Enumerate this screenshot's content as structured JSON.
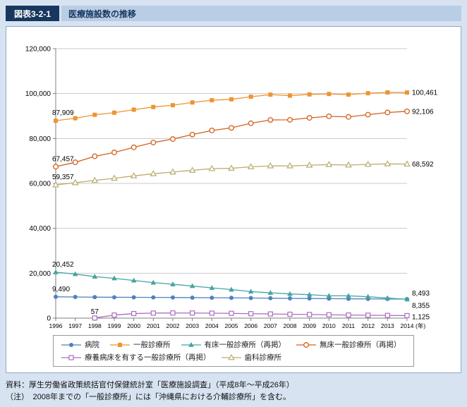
{
  "header": {
    "tag": "図表3-2-1",
    "title": "医療施設数の推移"
  },
  "chart_data": {
    "type": "line",
    "title": "医療施設数の推移",
    "x": [
      1996,
      1997,
      1998,
      1999,
      2000,
      2001,
      2002,
      2003,
      2004,
      2005,
      2006,
      2007,
      2008,
      2009,
      2010,
      2011,
      2012,
      2013,
      2014
    ],
    "x_axis_suffix": "(年)",
    "ylim": [
      0,
      120000
    ],
    "ytick_step": 20000,
    "grid": true,
    "legend_position": "bottom",
    "series": [
      {
        "name": "病院",
        "marker": "circle",
        "color": "#4f81bd",
        "first_label": "9,490",
        "last_label": "8,493",
        "values": [
          9490,
          9413,
          9333,
          9286,
          9266,
          9239,
          9187,
          9122,
          9077,
          9026,
          8943,
          8862,
          8794,
          8739,
          8670,
          8605,
          8565,
          8540,
          8493
        ]
      },
      {
        "name": "一般診療所",
        "marker": "square",
        "color": "#ee9432",
        "first_label": "87,909",
        "last_label": "100,461",
        "values": [
          87909,
          89014,
          90556,
          91500,
          92824,
          94019,
          94819,
          96050,
          97051,
          97442,
          98609,
          99532,
          99083,
          99635,
          99824,
          99547,
          100152,
          100528,
          100461
        ]
      },
      {
        "name": "有床一般診療所（再掲）",
        "marker": "triangle",
        "color": "#43a5a0",
        "first_label": "20,452",
        "last_label": "8,355",
        "values": [
          20452,
          19612,
          18487,
          17706,
          16755,
          15815,
          15068,
          14304,
          13477,
          12713,
          11826,
          11269,
          10777,
          10452,
          9943,
          9934,
          9528,
          8947,
          8355
        ]
      },
      {
        "name": "無床一般診療所（再掲）",
        "marker": "circle-open",
        "color": "#d2611c",
        "first_label": "67,457",
        "last_label": "92,106",
        "values": [
          67457,
          69402,
          72069,
          73794,
          76069,
          78204,
          79751,
          81746,
          83574,
          84729,
          86783,
          88263,
          88306,
          89183,
          89881,
          89613,
          90624,
          91581,
          92106
        ]
      },
      {
        "name": "療養病床を有する一般診療所（再掲）",
        "marker": "square-open",
        "color": "#a96dc0",
        "first_label": "57",
        "last_label": "1,125",
        "values": [
          null,
          null,
          57,
          1361,
          2026,
          2228,
          2298,
          2268,
          2204,
          2130,
          1973,
          1857,
          1728,
          1620,
          1487,
          1385,
          1296,
          1212,
          1125
        ]
      },
      {
        "name": "歯科診療所",
        "marker": "triangle-open",
        "color": "#bcab6f",
        "first_label": "59,357",
        "last_label": "68,592",
        "values": [
          59357,
          60299,
          61332,
          62282,
          63361,
          64297,
          65073,
          65828,
          66557,
          66732,
          67392,
          67798,
          67779,
          68097,
          68384,
          68156,
          68474,
          68701,
          68592
        ]
      }
    ]
  },
  "footer": {
    "source": "資料：厚生労働省政策統括官付保健統計室「医療施設調査」（平成8年～平成26年）",
    "note": "（注）　2008年までの「一般診療所」には「沖縄県における介輔診療所」を含む。"
  }
}
